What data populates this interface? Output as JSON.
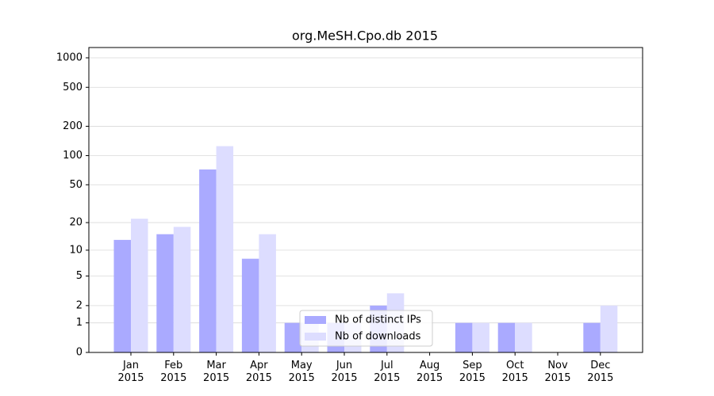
{
  "chart_data": {
    "type": "bar",
    "title": "org.MeSH.Cpo.db 2015",
    "categories": [
      "Jan\n2015",
      "Feb\n2015",
      "Mar\n2015",
      "Apr\n2015",
      "May\n2015",
      "Jun\n2015",
      "Jul\n2015",
      "Aug\n2015",
      "Sep\n2015",
      "Oct\n2015",
      "Nov\n2015",
      "Dec\n2015"
    ],
    "series": [
      {
        "name": "Nb of distinct IPs",
        "color": "#aaaaff",
        "values": [
          13,
          15,
          72,
          8,
          1,
          1,
          2,
          0,
          1,
          1,
          0,
          1
        ]
      },
      {
        "name": "Nb of downloads",
        "color": "#ddddff",
        "values": [
          22,
          18,
          125,
          15,
          1,
          1,
          3,
          0,
          1,
          1,
          0,
          2
        ]
      }
    ],
    "yscale": "log1p",
    "ylim": [
      0,
      1273
    ],
    "yticks": [
      0,
      1,
      2,
      5,
      10,
      20,
      50,
      100,
      200,
      500,
      1000
    ],
    "grid": true,
    "legend": "lower center"
  }
}
